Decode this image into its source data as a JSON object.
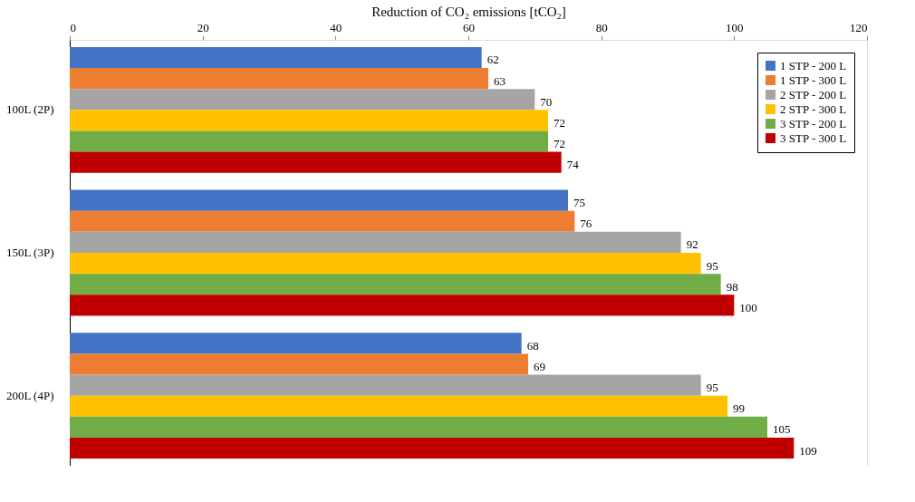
{
  "chart_data": {
    "type": "bar",
    "orientation": "horizontal",
    "xlabel": "Reduction of CO₂ emissions [tCO₂]",
    "categories": [
      "100L (2P)",
      "150L (3P)",
      "200L (4P)"
    ],
    "series": [
      {
        "name": "1 STP - 200 L",
        "color": "#4472c4",
        "values": [
          62,
          75,
          68
        ]
      },
      {
        "name": "1 STP - 300 L",
        "color": "#ed7d31",
        "values": [
          63,
          76,
          69
        ]
      },
      {
        "name": "2 STP - 200 L",
        "color": "#a5a5a5",
        "values": [
          70,
          92,
          95
        ]
      },
      {
        "name": "2 STP - 300 L",
        "color": "#ffc000",
        "values": [
          72,
          95,
          99
        ]
      },
      {
        "name": "3 STP - 200 L",
        "color": "#70ad47",
        "values": [
          72,
          98,
          105
        ]
      },
      {
        "name": "3 STP - 300 L",
        "color": "#c00000",
        "values": [
          74,
          100,
          109
        ]
      }
    ],
    "xlim": [
      0,
      120
    ],
    "xticks": [
      0,
      20,
      40,
      60,
      80,
      100,
      120
    ],
    "data_labels": true,
    "legend": "top right",
    "grid": false
  }
}
